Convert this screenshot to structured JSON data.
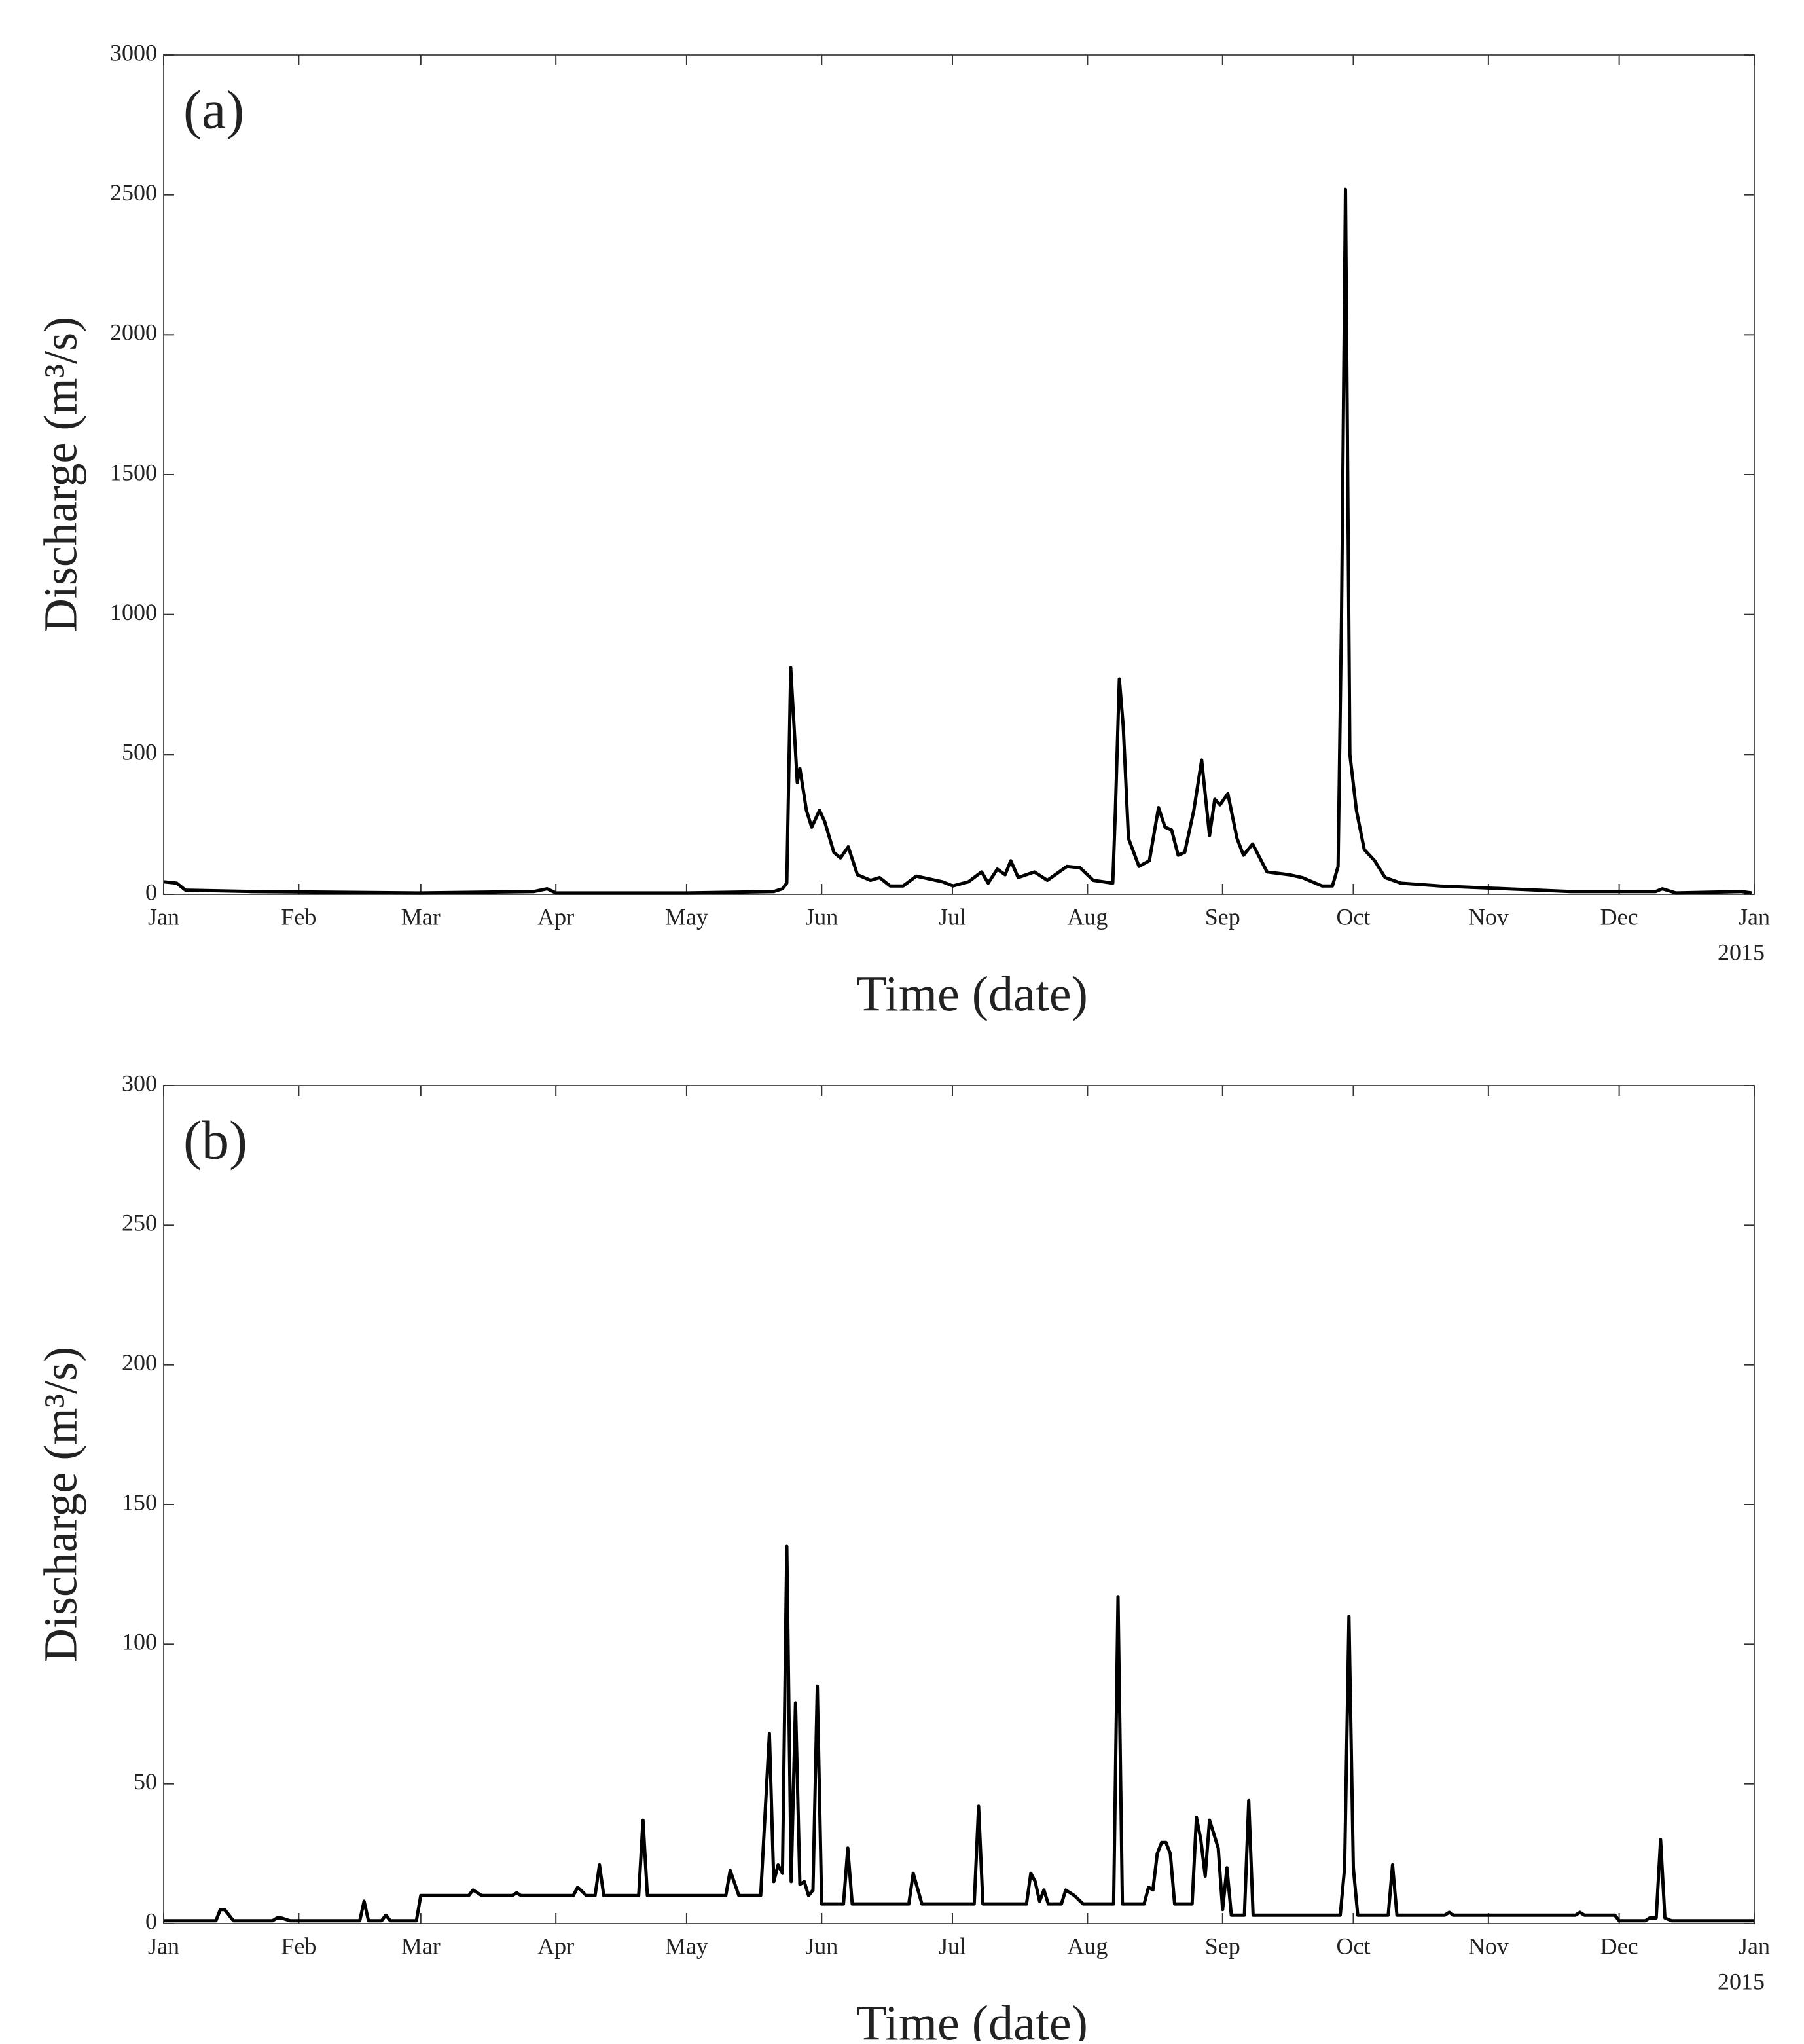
{
  "chart_data": [
    {
      "type": "line",
      "title": "(a)",
      "x_label": "Time (date)",
      "y_label": "Discharge (m³/s)",
      "x_year": "2015",
      "color": "#000000",
      "xlim": [
        0,
        365
      ],
      "xticks": [
        {
          "value": 0,
          "label": "Jan"
        },
        {
          "value": 31,
          "label": "Feb"
        },
        {
          "value": 59,
          "label": "Mar"
        },
        {
          "value": 90,
          "label": "Apr"
        },
        {
          "value": 120,
          "label": "May"
        },
        {
          "value": 151,
          "label": "Jun"
        },
        {
          "value": 181,
          "label": "Jul"
        },
        {
          "value": 212,
          "label": "Aug"
        },
        {
          "value": 243,
          "label": "Sep"
        },
        {
          "value": 273,
          "label": "Oct"
        },
        {
          "value": 304,
          "label": "Nov"
        },
        {
          "value": 334,
          "label": "Dec"
        },
        {
          "value": 365,
          "label": "Jan"
        }
      ],
      "ylim": [
        0,
        3000
      ],
      "yticks": [
        0,
        500,
        1000,
        1500,
        2000,
        2500,
        3000
      ],
      "x": [
        0,
        3,
        5,
        20,
        59,
        85,
        88,
        90,
        120,
        140,
        142,
        143,
        143.9,
        145.4,
        146,
        147.5,
        148.7,
        150.5,
        151.7,
        153.8,
        155.3,
        157.1,
        159.2,
        162.2,
        164.3,
        166.7,
        169.7,
        172.7,
        178.7,
        181.1,
        184.7,
        187.7,
        189.2,
        191.3,
        193.1,
        194.4,
        196.1,
        199.8,
        202.8,
        207.3,
        210.3,
        213.3,
        217.8,
        218.4,
        219.3,
        220.2,
        221.4,
        223.8,
        226.2,
        228.3,
        229.8,
        231.3,
        232.8,
        234.3,
        236.4,
        238.2,
        240,
        241.2,
        242.4,
        244.2,
        246.3,
        247.8,
        249.9,
        253.2,
        258.3,
        261.3,
        265.8,
        268.2,
        269.5,
        270.3,
        271.2,
        272.2,
        273.7,
        275.5,
        277.9,
        280.3,
        283.9,
        292.9,
        307.9,
        322.9,
        342.4,
        343.9,
        347,
        362,
        364.4
      ],
      "values": [
        45,
        40,
        15,
        10,
        5,
        10,
        20,
        5,
        5,
        10,
        20,
        40,
        810,
        400,
        450,
        300,
        240,
        300,
        260,
        150,
        130,
        170,
        70,
        50,
        60,
        30,
        30,
        65,
        45,
        30,
        45,
        80,
        40,
        90,
        70,
        120,
        60,
        80,
        50,
        100,
        95,
        50,
        40,
        300,
        770,
        600,
        200,
        100,
        120,
        310,
        240,
        230,
        140,
        150,
        300,
        480,
        210,
        340,
        320,
        360,
        200,
        140,
        180,
        80,
        70,
        60,
        30,
        30,
        100,
        1000,
        2520,
        500,
        300,
        160,
        120,
        60,
        40,
        30,
        20,
        10,
        10,
        20,
        5,
        10,
        5
      ]
    },
    {
      "type": "line",
      "title": "(b)",
      "x_label": "Time (date)",
      "y_label": "Discharge (m³/s)",
      "x_year": "2015",
      "color": "#000000",
      "xlim": [
        0,
        365
      ],
      "xticks": [
        {
          "value": 0,
          "label": "Jan"
        },
        {
          "value": 31,
          "label": "Feb"
        },
        {
          "value": 59,
          "label": "Mar"
        },
        {
          "value": 90,
          "label": "Apr"
        },
        {
          "value": 120,
          "label": "May"
        },
        {
          "value": 151,
          "label": "Jun"
        },
        {
          "value": 181,
          "label": "Jul"
        },
        {
          "value": 212,
          "label": "Aug"
        },
        {
          "value": 243,
          "label": "Sep"
        },
        {
          "value": 273,
          "label": "Oct"
        },
        {
          "value": 304,
          "label": "Nov"
        },
        {
          "value": 334,
          "label": "Dec"
        },
        {
          "value": 365,
          "label": "Jan"
        }
      ],
      "ylim": [
        0,
        300
      ],
      "yticks": [
        0,
        50,
        100,
        150,
        200,
        250,
        300
      ],
      "x": [
        0,
        12,
        13,
        14,
        16,
        25,
        26,
        27,
        29,
        45,
        46,
        47,
        48,
        50,
        51,
        52,
        53,
        58,
        59,
        70,
        71,
        73,
        80,
        81,
        82,
        94,
        95,
        97,
        99,
        100,
        101,
        109,
        110,
        111,
        129,
        130,
        132,
        137,
        139,
        140,
        141,
        142,
        143,
        144,
        145,
        146,
        147,
        148,
        149,
        150,
        151,
        156,
        157,
        158,
        171,
        172,
        174,
        186,
        187,
        188,
        198,
        199,
        200,
        201,
        202,
        203,
        206,
        207,
        209,
        211,
        218,
        219,
        220,
        225,
        226,
        227,
        228,
        229,
        230,
        231,
        232,
        236,
        237,
        238,
        239,
        240,
        241,
        242,
        243,
        244,
        245,
        248,
        249,
        250,
        270,
        271,
        272,
        273,
        274,
        281,
        282,
        283,
        294,
        295,
        296,
        324,
        325,
        326,
        333,
        334,
        340,
        341,
        342.5,
        343.5,
        344.5,
        346,
        365
      ],
      "values": [
        1,
        1,
        5,
        5,
        1,
        1,
        2,
        2,
        1,
        1,
        8,
        1,
        1,
        1,
        3,
        1,
        1,
        1,
        10,
        10,
        12,
        10,
        10,
        11,
        10,
        10,
        13,
        10,
        10,
        21,
        10,
        10,
        37,
        10,
        10,
        19,
        10,
        10,
        68,
        15,
        21,
        18,
        135,
        15,
        79,
        14,
        15,
        10,
        12,
        85,
        7,
        7,
        27,
        7,
        7,
        18,
        7,
        7,
        42,
        7,
        7,
        18,
        15,
        8,
        12,
        7,
        7,
        12,
        10,
        7,
        7,
        117,
        7,
        7,
        13,
        12,
        25,
        29,
        29,
        25,
        7,
        7,
        38,
        30,
        17,
        37,
        32,
        27,
        5,
        20,
        3,
        3,
        44,
        3,
        3,
        20,
        110,
        20,
        3,
        3,
        21,
        3,
        3,
        4,
        3,
        3,
        4,
        3,
        3,
        1,
        1,
        2,
        2,
        30,
        2,
        1,
        1
      ]
    }
  ]
}
